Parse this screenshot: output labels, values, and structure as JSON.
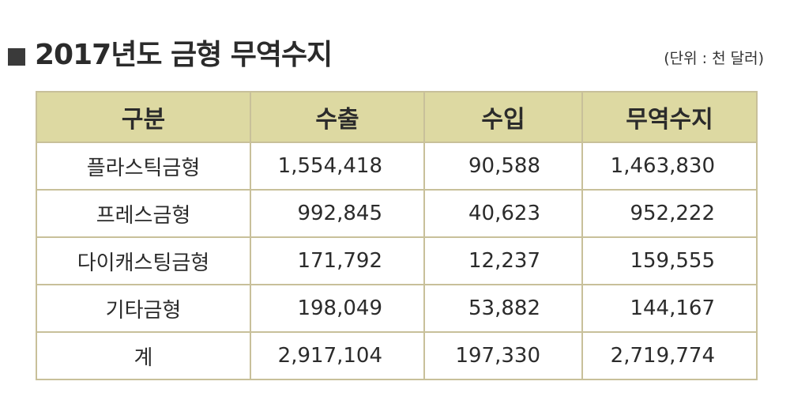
{
  "title": "2017년도 금형 무역수지",
  "unit": "(단위 : 천 달러)",
  "table": {
    "headers": [
      "구분",
      "수출",
      "수입",
      "무역수지"
    ],
    "rows": [
      [
        "플라스틱금형",
        "1,554,418",
        "90,588",
        "1,463,830"
      ],
      [
        "프레스금형",
        "992,845",
        "40,623",
        "952,222"
      ],
      [
        "다이캐스팅금형",
        "171,792",
        "12,237",
        "159,555"
      ],
      [
        "기타금형",
        "198,049",
        "53,882",
        "144,167"
      ],
      [
        "계",
        "2,917,104",
        "197,330",
        "2,719,774"
      ]
    ]
  },
  "colors": {
    "header_bg": "#ddd9a2",
    "border": "#c8c09a",
    "title_marker": "#3a3a3a"
  }
}
